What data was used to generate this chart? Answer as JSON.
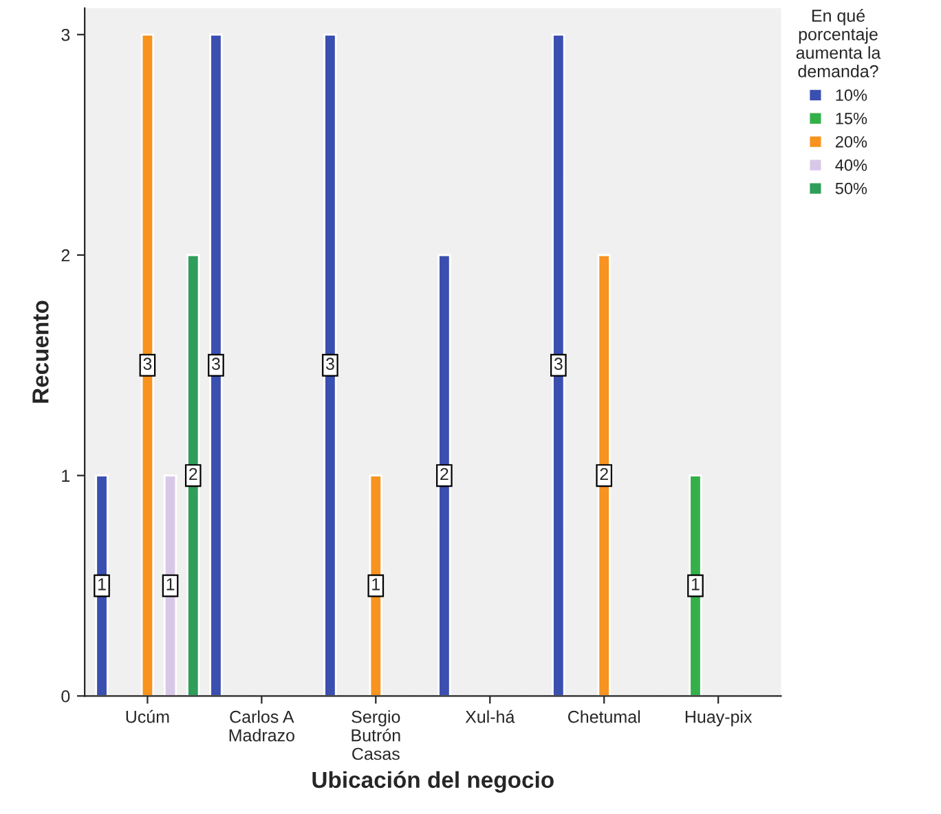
{
  "chart_data": {
    "type": "bar",
    "xlabel": "Ubicación del negocio",
    "ylabel": "Recuento",
    "legend_title": "En qué porcentaje aumenta la demanda?",
    "categories": [
      "Ucúm",
      "Carlos A Madrazo",
      "Sergio Butrón Casas",
      "Xul-há",
      "Chetumal",
      "Huay-pix"
    ],
    "series": [
      {
        "name": "10%",
        "color": "#3a4fb0",
        "values": [
          1,
          3,
          3,
          2,
          3,
          null
        ]
      },
      {
        "name": "15%",
        "color": "#34b04a",
        "values": [
          null,
          null,
          null,
          null,
          null,
          1
        ]
      },
      {
        "name": "20%",
        "color": "#f7931e",
        "values": [
          3,
          null,
          1,
          null,
          2,
          null
        ]
      },
      {
        "name": "40%",
        "color": "#d8c8e8",
        "values": [
          1,
          null,
          null,
          null,
          null,
          null
        ]
      },
      {
        "name": "50%",
        "color": "#2e9e5a",
        "values": [
          2,
          null,
          null,
          null,
          null,
          null
        ]
      }
    ],
    "ylim": [
      0,
      3.12
    ],
    "yticks": [
      0,
      1,
      2,
      3
    ],
    "grid": false,
    "legend": "right",
    "data_labels": true
  }
}
